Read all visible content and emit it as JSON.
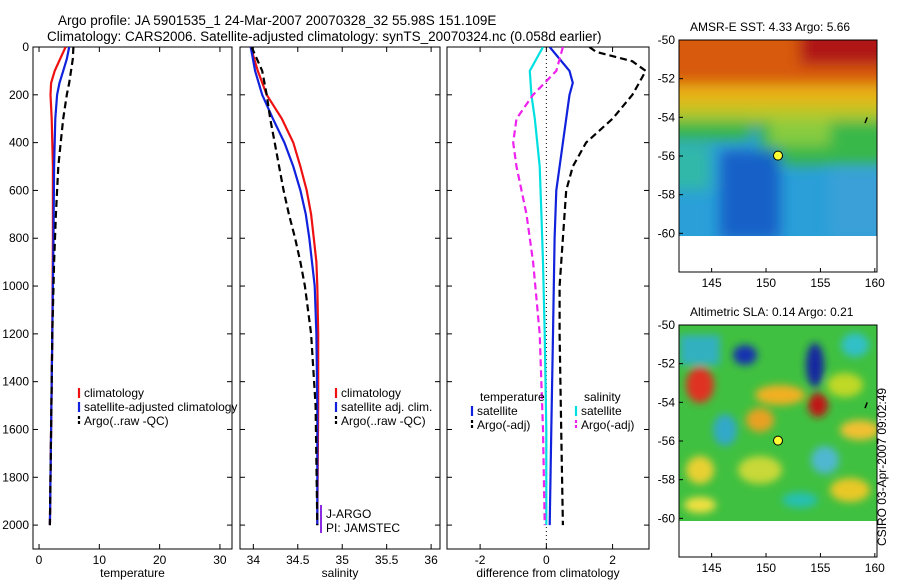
{
  "header": {
    "line1": "Argo profile: JA 5901535_1 24-Mar-2007 20070328_32 55.98S 151.109E",
    "line2": "Climatology: CARS2006. Satellite-adjusted climatology: synTS_20070324.nc (0.058d earlier)"
  },
  "footer": "CSIRO 03-Apr-2007 09:02:49",
  "colors": {
    "climatology": "#ee1111",
    "satellite": "#1122dd",
    "argo": "#000000",
    "sat_salinity": "#00e0e0",
    "argo_salinity": "#ee22ee"
  },
  "chart_data": [
    {
      "id": "temperature",
      "type": "line",
      "xlabel": "temperature",
      "ylabel": "",
      "xlim": [
        -1,
        32
      ],
      "ylim": [
        2100,
        0
      ],
      "xticks": [
        0,
        10,
        20,
        30
      ],
      "xtick_labels": [
        "0",
        "10",
        "20",
        "30"
      ],
      "yticks": [
        0,
        200,
        400,
        600,
        800,
        1000,
        1200,
        1400,
        1600,
        1800,
        2000
      ],
      "ytick_labels": [
        "0",
        "200",
        "400",
        "600",
        "800",
        "1000",
        "1200",
        "1400",
        "1600",
        "1800",
        "2000"
      ],
      "legend": {
        "placement": "bottom-right",
        "entries": [
          "climatology",
          "satellite-adjusted climatology",
          "Argo(..raw -QC)"
        ]
      },
      "series": [
        {
          "name": "climatology",
          "color": "#ee1111",
          "dash": "",
          "depth": [
            0,
            50,
            100,
            150,
            200,
            300,
            500,
            800,
            1200,
            1600,
            2000
          ],
          "values": [
            4.4,
            3.5,
            2.6,
            2.0,
            1.9,
            2.1,
            2.3,
            2.3,
            2.2,
            2.0,
            1.8
          ]
        },
        {
          "name": "satellite-adjusted climatology",
          "color": "#1122dd",
          "dash": "",
          "depth": [
            0,
            50,
            100,
            150,
            200,
            300,
            500,
            800,
            1200,
            1600,
            2000
          ],
          "values": [
            5.0,
            4.6,
            4.0,
            3.4,
            3.0,
            2.7,
            2.5,
            2.4,
            2.2,
            2.0,
            1.8
          ]
        },
        {
          "name": "Argo(..raw -QC)",
          "color": "#000000",
          "dash": "7 4",
          "depth": [
            0,
            50,
            100,
            150,
            200,
            300,
            400,
            500,
            700,
            900,
            1200,
            1600,
            2000
          ],
          "values": [
            5.7,
            5.6,
            5.3,
            5.0,
            4.6,
            4.0,
            3.6,
            3.2,
            2.8,
            2.5,
            2.2,
            2.0,
            1.8
          ]
        }
      ]
    },
    {
      "id": "salinity",
      "type": "line",
      "xlabel": "salinity",
      "ylabel": "",
      "xlim": [
        33.85,
        36.1
      ],
      "ylim": [
        2100,
        0
      ],
      "xticks": [
        34,
        34.5,
        35,
        35.5,
        36
      ],
      "xtick_labels": [
        "34",
        "34.5",
        "35",
        "35.5",
        "36"
      ],
      "legend": {
        "placement": "bottom-right",
        "entries": [
          "climatology",
          "satellite adj. clim.",
          "Argo(..raw -QC)"
        ]
      },
      "annotations": [
        "J-ARGO",
        "PI: JAMSTEC"
      ],
      "series": [
        {
          "name": "climatology",
          "color": "#ee1111",
          "dash": "",
          "depth": [
            0,
            100,
            200,
            300,
            400,
            500,
            600,
            700,
            800,
            900,
            1000,
            1200,
            1500,
            2000
          ],
          "values": [
            33.97,
            34.05,
            34.15,
            34.32,
            34.45,
            34.53,
            34.6,
            34.65,
            34.68,
            34.71,
            34.72,
            34.73,
            34.73,
            34.72
          ]
        },
        {
          "name": "satellite adj. clim.",
          "color": "#1122dd",
          "dash": "",
          "depth": [
            0,
            100,
            200,
            300,
            400,
            500,
            600,
            700,
            800,
            900,
            1000,
            1200,
            1500,
            2000
          ],
          "values": [
            33.97,
            34.02,
            34.1,
            34.22,
            34.35,
            34.45,
            34.53,
            34.59,
            34.63,
            34.66,
            34.69,
            34.71,
            34.72,
            34.72
          ]
        },
        {
          "name": "Argo(..raw -QC)",
          "color": "#000000",
          "dash": "7 4",
          "depth": [
            0,
            100,
            200,
            300,
            400,
            500,
            600,
            700,
            800,
            900,
            1000,
            1200,
            1500,
            2000
          ],
          "values": [
            33.98,
            34.1,
            34.15,
            34.19,
            34.24,
            34.29,
            34.34,
            34.4,
            34.47,
            34.53,
            34.58,
            34.65,
            34.7,
            34.72
          ]
        }
      ]
    },
    {
      "id": "difference",
      "type": "line",
      "xlabel": "difference from climatology",
      "ylabel": "",
      "xlim": [
        -3,
        3.1
      ],
      "ylim": [
        2100,
        0
      ],
      "xticks": [
        -2,
        0,
        2
      ],
      "xtick_labels": [
        "-2",
        "0",
        "2"
      ],
      "legend": {
        "placement": "bottom",
        "entries": [
          "temperature",
          "satellite",
          "Argo(-adj)",
          "salinity",
          "satellite",
          "Argo(-adj)"
        ]
      },
      "series": [
        {
          "name": "temperature satellite",
          "color": "#1122dd",
          "dash": "",
          "depth": [
            0,
            50,
            100,
            150,
            200,
            300,
            400,
            600,
            800,
            1200,
            1600,
            2000
          ],
          "values": [
            0.1,
            0.4,
            0.7,
            0.8,
            0.7,
            0.6,
            0.5,
            0.3,
            0.25,
            0.2,
            0.15,
            0.1
          ]
        },
        {
          "name": "temperature Argo(-adj)",
          "color": "#000000",
          "dash": "7 4",
          "depth": [
            0,
            20,
            60,
            100,
            150,
            200,
            300,
            400,
            500,
            600,
            800,
            1000,
            1200,
            1600,
            2000
          ],
          "values": [
            1.3,
            1.5,
            2.6,
            3.0,
            2.8,
            2.6,
            2.0,
            1.2,
            0.8,
            0.6,
            0.5,
            0.4,
            0.4,
            0.45,
            0.5
          ]
        },
        {
          "name": "salinity satellite",
          "color": "#00e0e0",
          "dash": "",
          "depth": [
            0,
            100,
            200,
            300,
            500,
            700,
            900,
            1200,
            1600,
            2000
          ],
          "values": [
            -0.1,
            -0.5,
            -0.45,
            -0.35,
            -0.2,
            -0.15,
            -0.1,
            -0.05,
            0,
            0
          ]
        },
        {
          "name": "salinity Argo(-adj)",
          "color": "#ee22ee",
          "dash": "7 4",
          "depth": [
            0,
            50,
            100,
            200,
            300,
            400,
            500,
            700,
            900,
            1200,
            1600,
            2000
          ],
          "values": [
            0.5,
            0.4,
            0.3,
            -0.4,
            -0.9,
            -1.0,
            -0.9,
            -0.6,
            -0.4,
            -0.2,
            -0.1,
            -0.05
          ]
        }
      ],
      "reference_line": 0
    },
    {
      "id": "sst_map",
      "type": "heatmap",
      "title": "AMSR-E SST: 4.33 Argo: 5.66",
      "xlim": [
        142,
        160.2
      ],
      "ylim": [
        -62,
        -50
      ],
      "xticks": [
        145,
        150,
        155,
        160
      ],
      "xtick_labels": [
        "145",
        "150",
        "155",
        "160"
      ],
      "yticks": [
        -50,
        -52,
        -54,
        -56,
        -58,
        -60
      ],
      "ytick_labels": [
        "-50",
        "-52",
        "-54",
        "-56",
        "-58",
        "-60"
      ],
      "float_position": [
        151.1,
        -55.98
      ],
      "float_color": "#ffff33"
    },
    {
      "id": "sla_map",
      "type": "heatmap",
      "title": "Altimetric SLA: 0.14 Argo: 0.21",
      "xlim": [
        142,
        160.2
      ],
      "ylim": [
        -62,
        -50
      ],
      "xticks": [
        145,
        150,
        155,
        160
      ],
      "xtick_labels": [
        "145",
        "150",
        "155",
        "160"
      ],
      "yticks": [
        -50,
        -52,
        -54,
        -56,
        -58,
        -60
      ],
      "ytick_labels": [
        "-50",
        "-52",
        "-54",
        "-56",
        "-58",
        "-60"
      ],
      "float_position": [
        151.1,
        -55.98
      ],
      "float_color": "#ffff33"
    }
  ]
}
